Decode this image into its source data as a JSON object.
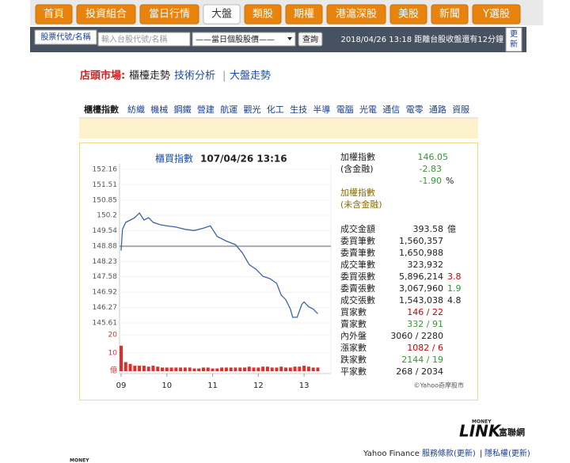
{
  "nav": {
    "tabs": [
      "首頁",
      "投資組合",
      "當日行情",
      "大盤",
      "類股",
      "期權",
      "港滬深股",
      "美股",
      "新聞",
      "Y選股"
    ],
    "active": 3
  },
  "search": {
    "button": "股票代號/名稱",
    "placeholder": "輸入台股代號/名稱",
    "select": "——當日個股股價——",
    "submit": "查詢",
    "status": "2018/04/26 13:18 距離台股收盤還有12分鐘",
    "refresh": "更新"
  },
  "breadcrumb": {
    "market": "店頭市場:",
    "items": [
      "櫃檯走勢",
      "技術分析",
      "大盤走勢"
    ],
    "separator": "|"
  },
  "categories": [
    "櫃檯指數",
    "紡織",
    "機械",
    "鋼鐵",
    "營建",
    "航運",
    "觀光",
    "化工",
    "生技",
    "半導",
    "電腦",
    "光電",
    "通信",
    "電零",
    "通路",
    "資服"
  ],
  "chart": {
    "type": "line",
    "title": "櫃買指數",
    "subtitle": "107/04/26 13:16",
    "xlim": [
      9,
      13.5
    ],
    "xticks": [
      {
        "value": 9,
        "label": "09"
      },
      10,
      11,
      12,
      13
    ],
    "ylim": [
      145.61,
      152.16
    ],
    "yticks": [
      145.61,
      146.27,
      146.92,
      147.58,
      148.23,
      148.88,
      149.54,
      150.2,
      150.85,
      151.51,
      152.16
    ],
    "reference": 148.88,
    "reference_color": "#aaaaaa",
    "y2lim": [
      0,
      20
    ],
    "y2ticks": [
      10,
      20
    ],
    "y2_unit": "億",
    "copyright": "©Yahoo奇摩股市",
    "series": [
      {
        "color": "#3b64a8",
        "x": [
          9.0,
          9.03,
          9.1,
          9.2,
          9.3,
          9.4,
          9.5,
          9.6,
          9.7,
          9.85,
          10.0,
          10.2,
          10.4,
          10.6,
          10.8,
          10.95,
          11.1,
          11.3,
          11.5,
          11.65,
          11.8,
          11.95,
          12.1,
          12.25,
          12.4,
          12.5,
          12.6,
          12.7,
          12.75,
          12.85,
          12.95,
          13.0,
          13.1,
          13.2,
          13.3
        ],
        "values": [
          148.7,
          149.6,
          149.9,
          150.0,
          150.1,
          150.3,
          150.0,
          150.1,
          149.9,
          149.8,
          149.75,
          149.7,
          149.6,
          149.55,
          149.65,
          149.75,
          149.3,
          149.1,
          148.95,
          148.6,
          148.1,
          147.9,
          147.6,
          147.5,
          147.3,
          146.8,
          146.6,
          146.2,
          145.85,
          145.85,
          146.4,
          146.5,
          146.3,
          146.2,
          146.0
        ]
      },
      {
        "type": "bar",
        "axis": "y2",
        "color": "#d9302c",
        "x": [
          9.0,
          9.1,
          9.2,
          9.3,
          9.4,
          9.5,
          9.6,
          9.7,
          9.8,
          9.9,
          10.0,
          10.1,
          10.2,
          10.3,
          10.4,
          10.5,
          10.6,
          10.7,
          10.8,
          10.9,
          11.0,
          11.1,
          11.2,
          11.3,
          11.4,
          11.5,
          11.6,
          11.7,
          11.8,
          11.9,
          12.0,
          12.1,
          12.2,
          12.3,
          12.4,
          12.5,
          12.6,
          12.7,
          12.8,
          12.9,
          13.0,
          13.1,
          13.2,
          13.3
        ],
        "values": [
          14,
          5,
          4,
          3,
          3,
          3,
          2.5,
          3,
          2.5,
          2,
          2,
          2,
          2,
          2,
          2,
          2,
          1.5,
          1.5,
          2,
          2,
          1.5,
          1.5,
          2,
          2,
          2,
          2,
          2,
          2,
          2.5,
          2,
          2,
          2.5,
          2.5,
          2,
          2,
          2.5,
          2,
          2,
          2.5,
          2.5,
          3,
          2.5,
          2,
          2
        ]
      }
    ]
  },
  "stats": {
    "index_label": "加權指數",
    "index_sub": "(含金融)",
    "index_value": "146.05",
    "change": "-2.83",
    "pct": "-1.90",
    "pct_unit": "%",
    "up_color": "#339933",
    "index2_label": "加權指數",
    "index2_sub": "(未含金融)",
    "rows": [
      {
        "label": "成交金額",
        "value": "393.58",
        "note": "億"
      },
      {
        "label": "委買筆數",
        "value": "1,560,357"
      },
      {
        "label": "委賣筆數",
        "value": "1,650,988"
      },
      {
        "label": "成交筆數",
        "value": "323,932"
      },
      {
        "label": "委買張數",
        "value": "5,896,214",
        "note": "3.8",
        "note_color": "#cc0000"
      },
      {
        "label": "委賣張數",
        "value": "3,067,960",
        "note": "1.9",
        "note_color": "#339933"
      },
      {
        "label": "成交張數",
        "value": "1,543,038",
        "note": "4.8"
      },
      {
        "label": "買家數",
        "value": "146 / 22",
        "color": "#cc0000"
      },
      {
        "label": "賣家數",
        "value": "332 / 91",
        "color": "#339933"
      },
      {
        "label": "內外盤",
        "value": "3060 / 2280"
      },
      {
        "label": "漲家數",
        "value": "1082 / 6",
        "color": "#cc0000"
      },
      {
        "label": "跌家數",
        "value": "2144 / 19",
        "color": "#339933"
      },
      {
        "label": "平家數",
        "value": "268 / 2034"
      }
    ]
  },
  "footer": {
    "logo_top": "MONEY",
    "logo": "LINK",
    "logo_name": "富聯網",
    "brand": "Yahoo Finance",
    "links": [
      "服務條款(更新)",
      "隱私權(更新)"
    ],
    "separator": "|",
    "bottom_logo": "MONEY"
  }
}
